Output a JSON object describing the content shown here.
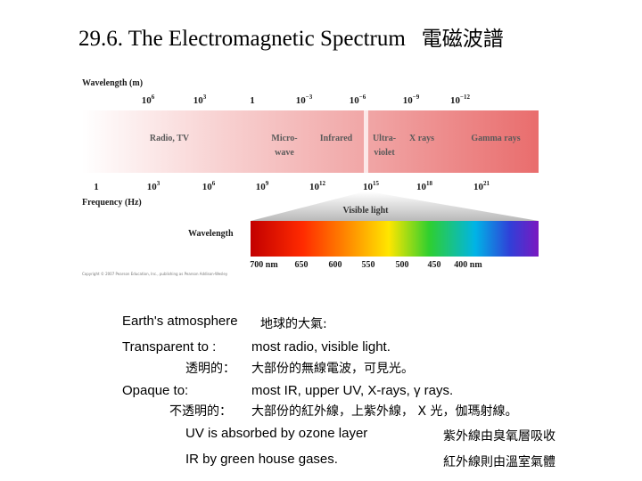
{
  "slide": {
    "title": "29.6. The Electromagnetic Spectrum",
    "title_cjk": "電磁波譜"
  },
  "figure": {
    "wavelength_header": "Wavelength (m)",
    "wavelength_ticks": [
      {
        "base": "10",
        "exp": "6"
      },
      {
        "base": "10",
        "exp": "3"
      },
      {
        "base": "1",
        "exp": ""
      },
      {
        "base": "10",
        "exp": "−3"
      },
      {
        "base": "10",
        "exp": "−6"
      },
      {
        "base": "10",
        "exp": "−9"
      },
      {
        "base": "10",
        "exp": "−12"
      }
    ],
    "bands": [
      "Radio, TV",
      "Micro-",
      "wave",
      "Infrared",
      "Ultra-",
      "violet",
      "X rays",
      "Gamma rays"
    ],
    "frequency_ticks": [
      {
        "base": "1",
        "exp": ""
      },
      {
        "base": "10",
        "exp": "3"
      },
      {
        "base": "10",
        "exp": "6"
      },
      {
        "base": "10",
        "exp": "9"
      },
      {
        "base": "10",
        "exp": "12"
      },
      {
        "base": "10",
        "exp": "15"
      },
      {
        "base": "10",
        "exp": "18"
      },
      {
        "base": "10",
        "exp": "21"
      }
    ],
    "frequency_header": "Frequency (Hz)",
    "visible_light_label": "Visible light",
    "visible_wavelength_label": "Wavelength",
    "visible_ticks": [
      "700 nm",
      "650",
      "600",
      "550",
      "500",
      "450",
      "400 nm"
    ],
    "copyright": "Copyright © 2007 Pearson Education, Inc., publishing as Pearson Addison-Wesley"
  },
  "notes": {
    "atmosphere_label": "Earth's atmosphere",
    "atmosphere_cjk": "地球的大氣:",
    "transparent_label": "Transparent to :",
    "transparent_value": "most radio, visible light.",
    "transparent_cjk_label": "透明的：",
    "transparent_cjk_value": "大部份的無線電波，可見光。",
    "opaque_label": "Opaque to:",
    "opaque_value": "most IR, upper UV,  X-rays, γ rays.",
    "opaque_cjk_label": "不透明的：",
    "opaque_cjk_value": "大部份的紅外線，上紫外線， X 光，伽瑪射線。",
    "uv_text": "UV is absorbed by ozone layer",
    "uv_cjk": "紫外線由臭氧層吸收",
    "ir_text": "IR by green house gases.",
    "ir_cjk": "紅外線則由溫室氣體"
  }
}
